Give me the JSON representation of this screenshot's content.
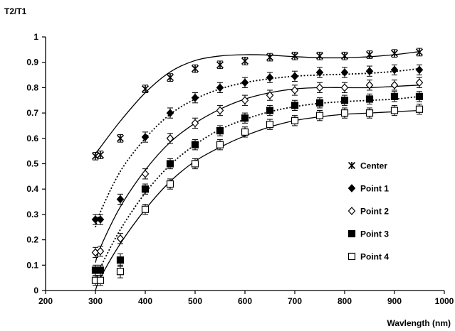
{
  "chart_data": {
    "type": "scatter",
    "title": "",
    "xlabel": "Wavlength (nm)",
    "ylabel": "T2/T1",
    "xlim": [
      200,
      1000
    ],
    "ylim": [
      0,
      1
    ],
    "xticks": [
      "200",
      "300",
      "400",
      "500",
      "600",
      "700",
      "800",
      "900",
      "1000"
    ],
    "yticks": [
      "0",
      "0.1",
      "0.2",
      "0.3",
      "0.4",
      "0.5",
      "0.6",
      "0.7",
      "0.8",
      "0.9",
      "1"
    ],
    "grid": false,
    "legend_position": "right",
    "x": [
      300,
      310,
      350,
      400,
      450,
      500,
      550,
      600,
      650,
      700,
      750,
      800,
      850,
      900,
      950
    ],
    "series": [
      {
        "name": "Center",
        "marker": "asterisk",
        "fit_line": "solid",
        "values": [
          0.53,
          0.535,
          0.6,
          0.795,
          0.84,
          0.875,
          0.89,
          0.905,
          0.92,
          0.925,
          0.925,
          0.925,
          0.93,
          0.935,
          0.94
        ],
        "error": [
          0.015,
          0.015,
          0.015,
          0.015,
          0.015,
          0.015,
          0.015,
          0.015,
          0.015,
          0.015,
          0.015,
          0.015,
          0.015,
          0.015,
          0.015
        ],
        "fit": [
          0.54,
          0.565,
          0.668,
          0.78,
          0.862,
          0.907,
          0.925,
          0.93,
          0.928,
          0.922,
          0.918,
          0.918,
          0.922,
          0.93,
          0.942
        ]
      },
      {
        "name": "Point 1",
        "marker": "filled-diamond",
        "fit_line": "dotted",
        "values": [
          0.28,
          0.28,
          0.36,
          0.605,
          0.7,
          0.76,
          0.8,
          0.82,
          0.84,
          0.845,
          0.86,
          0.86,
          0.865,
          0.87,
          0.87
        ],
        "error": [
          0.02,
          0.02,
          0.02,
          0.02,
          0.02,
          0.02,
          0.02,
          0.02,
          0.02,
          0.02,
          0.02,
          0.02,
          0.02,
          0.02,
          0.02
        ],
        "fit": [
          0.25,
          0.31,
          0.47,
          0.6,
          0.695,
          0.755,
          0.795,
          0.82,
          0.835,
          0.845,
          0.85,
          0.853,
          0.857,
          0.864,
          0.875
        ]
      },
      {
        "name": "Point 2",
        "marker": "open-diamond",
        "fit_line": "solid",
        "values": [
          0.15,
          0.155,
          0.205,
          0.46,
          0.6,
          0.66,
          0.71,
          0.75,
          0.77,
          0.79,
          0.8,
          0.8,
          0.81,
          0.81,
          0.82
        ],
        "error": [
          0.02,
          0.02,
          0.02,
          0.02,
          0.02,
          0.02,
          0.02,
          0.02,
          0.02,
          0.02,
          0.02,
          0.02,
          0.02,
          0.02,
          0.02
        ],
        "fit": [
          0.11,
          0.17,
          0.33,
          0.475,
          0.585,
          0.66,
          0.715,
          0.755,
          0.78,
          0.795,
          0.8,
          0.8,
          0.8,
          0.805,
          0.81
        ]
      },
      {
        "name": "Point 3",
        "marker": "filled-square",
        "fit_line": "dotted",
        "values": [
          0.08,
          0.08,
          0.12,
          0.4,
          0.5,
          0.575,
          0.63,
          0.68,
          0.71,
          0.73,
          0.74,
          0.75,
          0.755,
          0.765,
          0.765
        ],
        "error": [
          0.02,
          0.02,
          0.025,
          0.02,
          0.02,
          0.02,
          0.02,
          0.02,
          0.02,
          0.02,
          0.02,
          0.02,
          0.02,
          0.02,
          0.02
        ],
        "fit": [
          0.03,
          0.09,
          0.24,
          0.385,
          0.495,
          0.575,
          0.635,
          0.675,
          0.705,
          0.725,
          0.738,
          0.745,
          0.75,
          0.755,
          0.765
        ]
      },
      {
        "name": "Point 4",
        "marker": "open-square",
        "fit_line": "solid",
        "values": [
          0.04,
          0.04,
          0.075,
          0.32,
          0.42,
          0.5,
          0.575,
          0.625,
          0.655,
          0.67,
          0.69,
          0.7,
          0.7,
          0.71,
          0.715
        ],
        "error": [
          0.02,
          0.02,
          0.025,
          0.02,
          0.02,
          0.02,
          0.02,
          0.02,
          0.02,
          0.02,
          0.02,
          0.02,
          0.02,
          0.02,
          0.02
        ],
        "fit": [
          0.0,
          0.05,
          0.185,
          0.32,
          0.43,
          0.51,
          0.565,
          0.61,
          0.645,
          0.67,
          0.685,
          0.695,
          0.7,
          0.705,
          0.71
        ]
      }
    ]
  }
}
